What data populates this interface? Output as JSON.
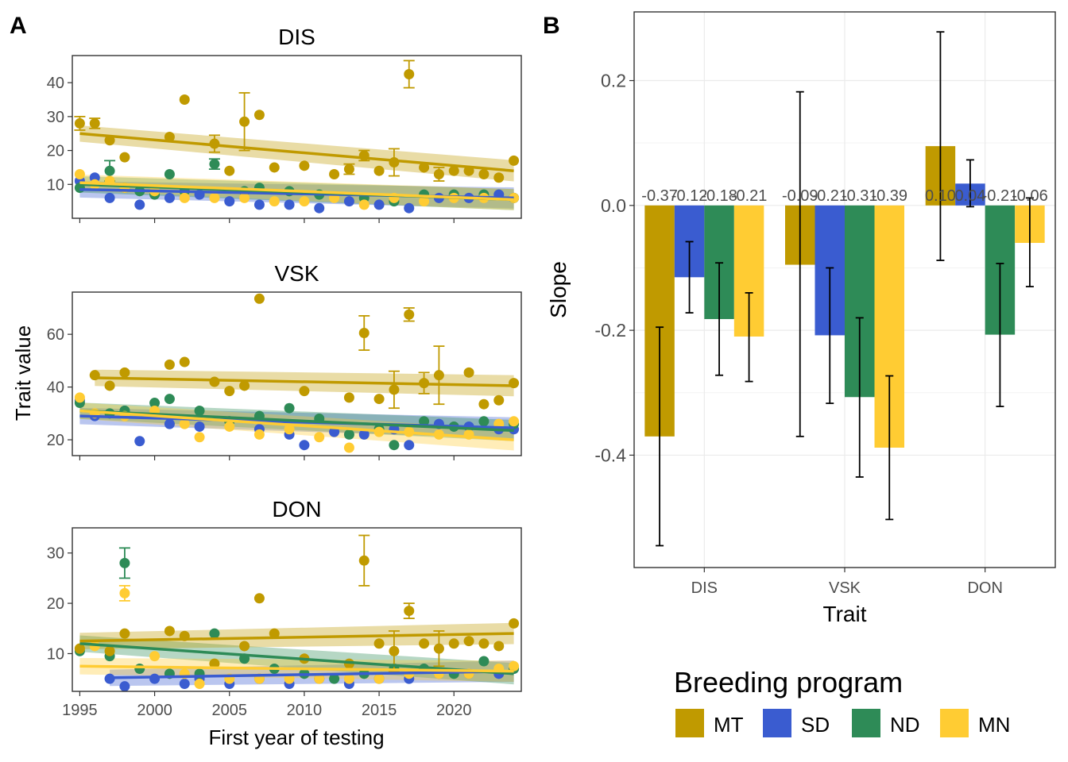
{
  "panel_labels": {
    "a": "A",
    "b": "B"
  },
  "colors": {
    "MT": "#C09A00",
    "SD": "#3A5CD0",
    "ND": "#2E8B57",
    "MN": "#FFCC33"
  },
  "legend": {
    "title": "Breeding program",
    "items": [
      "MT",
      "SD",
      "ND",
      "MN"
    ]
  },
  "chart_data": [
    {
      "type": "scatter",
      "title": "DIS",
      "xlabel": "First year of testing",
      "ylabel": "Trait value",
      "xlim": [
        1994.5,
        2024.5
      ],
      "ylim": [
        0,
        48
      ],
      "xticks": [
        1995,
        2000,
        2005,
        2010,
        2015,
        2020
      ],
      "yticks": [
        10,
        20,
        30,
        40
      ],
      "series": [
        {
          "name": "MT",
          "x": [
            1995,
            1996,
            1997,
            1998,
            2001,
            2002,
            2004,
            2005,
            2006,
            2007,
            2008,
            2010,
            2012,
            2013,
            2014,
            2015,
            2016,
            2017,
            2018,
            2019,
            2020,
            2021,
            2022,
            2023,
            2024
          ],
          "y": [
            28,
            28,
            23,
            18,
            24,
            35,
            22,
            14,
            28.5,
            30.5,
            15,
            15.5,
            13,
            14.5,
            18.5,
            14,
            16.5,
            42.5,
            15,
            13,
            14,
            14,
            13,
            12,
            17
          ],
          "err": [
            2,
            1.5,
            0,
            0,
            0,
            0,
            2.5,
            0,
            8.5,
            0,
            0,
            0,
            0,
            1.5,
            1.5,
            0,
            4,
            4,
            0,
            2,
            0,
            0,
            0,
            0,
            0
          ],
          "trend": [
            25,
            14
          ]
        },
        {
          "name": "SD",
          "x": [
            1995,
            1996,
            1997,
            1999,
            2001,
            2003,
            2005,
            2007,
            2009,
            2011,
            2013,
            2015,
            2017,
            2019,
            2021,
            2023,
            2024
          ],
          "y": [
            11,
            12,
            6,
            4,
            6,
            7,
            5,
            4,
            4,
            3,
            5,
            4,
            3,
            6,
            6,
            7,
            6
          ],
          "err": [],
          "trend": [
            8.5,
            6
          ]
        },
        {
          "name": "ND",
          "x": [
            1995,
            1997,
            1998,
            1999,
            2000,
            2001,
            2002,
            2004,
            2006,
            2007,
            2009,
            2011,
            2014,
            2016,
            2018,
            2020,
            2022,
            2024
          ],
          "y": [
            9,
            14,
            9,
            8,
            7,
            13,
            8,
            16,
            8,
            9,
            8,
            7,
            6,
            5,
            7,
            7,
            7,
            6
          ],
          "err": [
            0,
            3,
            0,
            0,
            0,
            0,
            0,
            1.5,
            0,
            0,
            0,
            0,
            0,
            0,
            0,
            0,
            0,
            0
          ],
          "trend": [
            10,
            5.5
          ]
        },
        {
          "name": "MN",
          "x": [
            1995,
            1996,
            1997,
            1998,
            2000,
            2002,
            2004,
            2006,
            2008,
            2010,
            2012,
            2014,
            2016,
            2018,
            2020,
            2022,
            2024
          ],
          "y": [
            13,
            10,
            11,
            9,
            8,
            6,
            6,
            6,
            5,
            5,
            6,
            4,
            6,
            5,
            6,
            6,
            6
          ],
          "err": [],
          "trend": [
            10.5,
            5.5
          ]
        }
      ]
    },
    {
      "type": "scatter",
      "title": "VSK",
      "xlim": [
        1994.5,
        2024.5
      ],
      "ylim": [
        14,
        76
      ],
      "xticks": [
        1995,
        2000,
        2005,
        2010,
        2015,
        2020
      ],
      "yticks": [
        20,
        40,
        60
      ],
      "series": [
        {
          "name": "MT",
          "x": [
            1996,
            1997,
            1998,
            2001,
            2002,
            2004,
            2005,
            2006,
            2007,
            2010,
            2013,
            2014,
            2015,
            2016,
            2017,
            2018,
            2019,
            2021,
            2022,
            2023,
            2024
          ],
          "y": [
            44.5,
            40.5,
            45.5,
            48.5,
            49.5,
            42,
            38.5,
            40.5,
            73.5,
            38.5,
            36,
            60.5,
            35.5,
            39,
            67.5,
            41.5,
            44.5,
            45.5,
            33.5,
            35,
            41.5
          ],
          "err": [
            0,
            0,
            0,
            0,
            0,
            0,
            0,
            0,
            0,
            0,
            0,
            6.5,
            0,
            7,
            2.5,
            4,
            11,
            0,
            0,
            0,
            0
          ],
          "trend": [
            43.5,
            40.5
          ]
        },
        {
          "name": "SD",
          "x": [
            1995,
            1996,
            1998,
            1999,
            2001,
            2003,
            2005,
            2007,
            2009,
            2010,
            2012,
            2014,
            2016,
            2017,
            2019,
            2021,
            2023,
            2024
          ],
          "y": [
            35,
            29,
            31,
            19.5,
            26,
            25,
            27,
            24,
            22,
            18,
            23,
            22,
            24,
            18,
            26,
            25,
            24,
            24
          ],
          "err": [],
          "trend": [
            29,
            24.5
          ]
        },
        {
          "name": "ND",
          "x": [
            1995,
            1997,
            1998,
            2000,
            2001,
            2003,
            2005,
            2007,
            2009,
            2011,
            2013,
            2015,
            2016,
            2018,
            2020,
            2022,
            2024
          ],
          "y": [
            34,
            30,
            31,
            34,
            35.5,
            31,
            27,
            29,
            32,
            28,
            22,
            24,
            18,
            27,
            25,
            27,
            26
          ],
          "err": [],
          "trend": [
            31,
            23.5
          ]
        },
        {
          "name": "MN",
          "x": [
            1995,
            1996,
            1998,
            2000,
            2002,
            2003,
            2005,
            2007,
            2009,
            2011,
            2013,
            2015,
            2017,
            2019,
            2021,
            2023,
            2024
          ],
          "y": [
            36,
            30,
            29,
            31,
            26,
            21,
            25,
            22,
            24,
            21,
            17,
            23,
            23,
            22,
            22,
            26,
            27
          ],
          "err": [],
          "trend": [
            31,
            20
          ]
        }
      ]
    },
    {
      "type": "scatter",
      "title": "DON",
      "xlim": [
        1994.5,
        2024.5
      ],
      "ylim": [
        2.5,
        35
      ],
      "xticks": [
        1995,
        2000,
        2005,
        2010,
        2015,
        2020
      ],
      "yticks": [
        10,
        20,
        30
      ],
      "series": [
        {
          "name": "MT",
          "x": [
            1995,
            1997,
            1998,
            2001,
            2002,
            2004,
            2006,
            2007,
            2008,
            2010,
            2013,
            2014,
            2015,
            2016,
            2017,
            2018,
            2019,
            2020,
            2021,
            2022,
            2023,
            2024
          ],
          "y": [
            11,
            10.5,
            14,
            14.5,
            13.5,
            8,
            11.5,
            21,
            14,
            9,
            8,
            28.5,
            12,
            10.5,
            18.5,
            12,
            11,
            12,
            12.5,
            12,
            11.5,
            16
          ],
          "err": [
            0,
            0,
            0,
            0,
            0,
            0,
            0,
            0,
            0,
            0,
            0,
            5,
            0,
            4,
            1.5,
            0,
            3.5,
            0,
            0,
            0,
            0,
            0
          ],
          "trend": [
            12.5,
            14
          ]
        },
        {
          "name": "SD",
          "x": [
            1997,
            1998,
            2000,
            2002,
            2003,
            2005,
            2007,
            2009,
            2011,
            2013,
            2015,
            2017,
            2019,
            2021,
            2023,
            2024
          ],
          "y": [
            5,
            3.5,
            5,
            4,
            5,
            4,
            5,
            4,
            5,
            4,
            5,
            5,
            6,
            6,
            6,
            7
          ],
          "err": [],
          "trend": [
            5.2,
            6.5
          ]
        },
        {
          "name": "ND",
          "x": [
            1995,
            1997,
            1998,
            1999,
            2001,
            2003,
            2004,
            2006,
            2008,
            2010,
            2012,
            2014,
            2016,
            2018,
            2020,
            2022,
            2024
          ],
          "y": [
            10.5,
            9.5,
            28,
            7,
            6,
            6,
            14,
            9,
            7,
            6,
            5,
            6,
            7,
            7,
            6,
            8.5,
            7
          ],
          "err": [
            0,
            0,
            3,
            0,
            0,
            0,
            0,
            0,
            0,
            0,
            0,
            0,
            0,
            0,
            0,
            0,
            0
          ],
          "trend": [
            12,
            6
          ]
        },
        {
          "name": "MN",
          "x": [
            1995,
            1996,
            1998,
            2000,
            2002,
            2003,
            2005,
            2007,
            2009,
            2011,
            2013,
            2015,
            2017,
            2019,
            2021,
            2023,
            2024
          ],
          "y": [
            11,
            11.5,
            22,
            9.5,
            6,
            4,
            5,
            5,
            5,
            5,
            5,
            5,
            6,
            6,
            6,
            7,
            7.5
          ],
          "err": [
            0,
            0,
            1.5,
            0,
            0,
            0,
            0,
            0,
            0,
            0,
            0,
            0,
            0,
            0,
            0,
            0,
            0
          ],
          "trend": [
            7.5,
            6.5
          ]
        }
      ]
    },
    {
      "type": "bar",
      "xlabel": "Trait",
      "ylabel": "Slope",
      "categories": [
        "DIS",
        "VSK",
        "DON"
      ],
      "ylim": [
        -0.58,
        0.31
      ],
      "yticks": [
        -0.4,
        -0.2,
        0.0,
        0.2
      ],
      "ytick_labels": [
        "-0.4",
        "-0.2",
        "0.0",
        "0.2"
      ],
      "series": [
        {
          "name": "MT",
          "values": [
            -0.37,
            -0.095,
            0.095
          ],
          "err_low": [
            -0.545,
            -0.37,
            -0.088
          ],
          "err_high": [
            -0.195,
            0.182,
            0.278
          ],
          "labels": [
            "-0.37",
            "-0.09",
            "0.10"
          ]
        },
        {
          "name": "SD",
          "values": [
            -0.115,
            -0.208,
            0.035
          ],
          "err_low": [
            -0.172,
            -0.317,
            -0.002
          ],
          "err_high": [
            -0.058,
            -0.1,
            0.073
          ],
          "labels": [
            "-0.12",
            "-0.21",
            "0.04"
          ]
        },
        {
          "name": "ND",
          "values": [
            -0.182,
            -0.307,
            -0.207
          ],
          "err_low": [
            -0.272,
            -0.435,
            -0.322
          ],
          "err_high": [
            -0.092,
            -0.18,
            -0.093
          ],
          "labels": [
            "-0.18",
            "-0.31",
            "-0.21"
          ]
        },
        {
          "name": "MN",
          "values": [
            -0.21,
            -0.388,
            -0.06
          ],
          "err_low": [
            -0.282,
            -0.503,
            -0.13
          ],
          "err_high": [
            -0.14,
            -0.273,
            0.012
          ],
          "labels": [
            "-0.21",
            "-0.39",
            "-0.06"
          ]
        }
      ]
    }
  ]
}
